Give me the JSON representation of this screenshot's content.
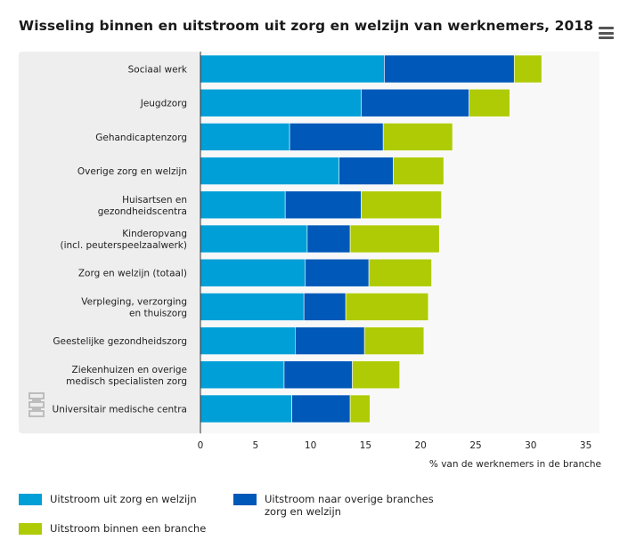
{
  "header": {
    "title": "Wisseling binnen en uitstroom uit zorg en welzijn van werknemers, 2018",
    "menu_icon": "hamburger-menu-icon"
  },
  "logo": {
    "icon": "cbs-logo-icon"
  },
  "colors": {
    "series1": "#009fd7",
    "series2": "#0058b8",
    "series3": "#afcb05",
    "panel": "#eeeeee"
  },
  "chart_data": {
    "type": "bar",
    "orientation": "horizontal",
    "stacked": true,
    "title": "Wisseling binnen en uitstroom uit zorg en welzijn van werknemers, 2018",
    "xlabel": "% van de werknemers in de branche",
    "ylabel": "",
    "xlim": [
      0,
      35
    ],
    "xticks": [
      0,
      5,
      10,
      15,
      20,
      25,
      30,
      35
    ],
    "grid": false,
    "legend_position": "bottom",
    "categories": [
      "Sociaal werk",
      "Jeugdzorg",
      "Gehandicaptenzorg",
      "Overige zorg en welzijn",
      "Huisartsen en\ngezondheidscentra",
      "Kinderopvang\n(incl. peuterspeelzaalwerk)",
      "Zorg en welzijn (totaal)",
      "Verpleging, verzorging\nen thuiszorg",
      "Geestelijke gezondheidszorg",
      "Ziekenhuizen en overige\nmedisch specialisten zorg",
      "Universitair medische centra"
    ],
    "series": [
      {
        "name": "Uitstroom uit zorg en welzijn",
        "values": [
          16.7,
          14.6,
          8.1,
          12.6,
          7.7,
          9.7,
          9.5,
          9.4,
          8.6,
          7.6,
          8.3
        ]
      },
      {
        "name": "Uitstroom naar overige branches\nzorg en welzijn",
        "values": [
          11.8,
          9.8,
          8.5,
          4.9,
          6.9,
          3.9,
          5.8,
          3.8,
          6.3,
          6.2,
          5.3
        ]
      },
      {
        "name": "Uitstroom binnen een branche",
        "values": [
          2.5,
          3.7,
          6.3,
          4.6,
          7.3,
          8.1,
          5.7,
          7.5,
          5.4,
          4.3,
          1.8
        ]
      }
    ]
  }
}
